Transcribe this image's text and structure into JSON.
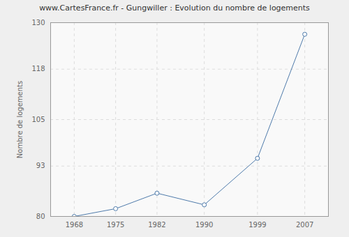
{
  "chart_data": {
    "type": "line",
    "title": "www.CartesFrance.fr - Gungwiller : Evolution du nombre de logements",
    "ylabel": "Nombre de logements",
    "x": [
      1968,
      1975,
      1982,
      1990,
      1999,
      2007
    ],
    "values": [
      80,
      82,
      86,
      83,
      95,
      127
    ],
    "color": "#4f7bab",
    "marker": "circle",
    "xlim": [
      1964,
      2011
    ],
    "xticks": [
      1968,
      1975,
      1982,
      1990,
      1999,
      2007
    ],
    "ylim": [
      80,
      130
    ],
    "yticks": [
      80,
      93,
      105,
      118,
      130
    ],
    "grid": true
  }
}
